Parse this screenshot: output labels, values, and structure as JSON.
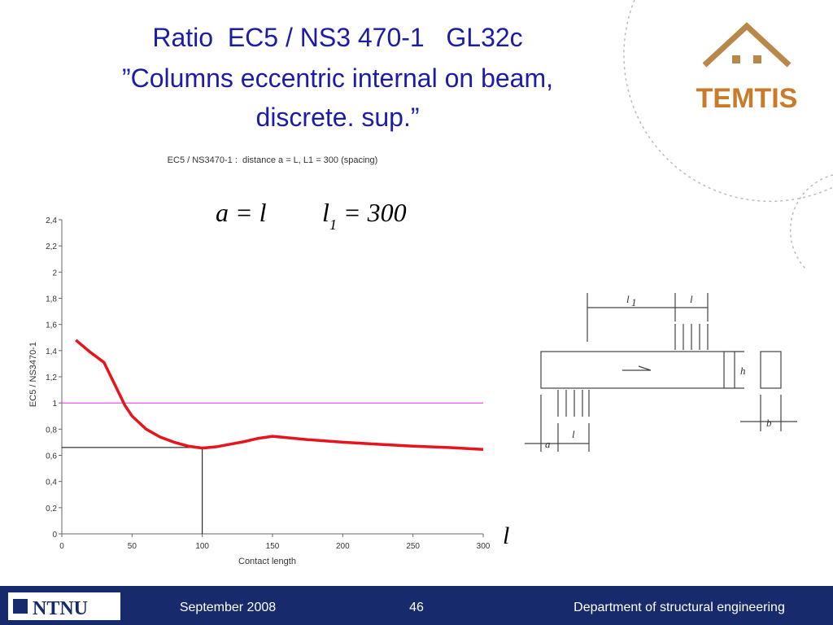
{
  "slide": {
    "title_lines": [
      "Ratio  EC5 / NS3 470-1   GL32c",
      "”Columns eccentric internal on beam,",
      "discrete. sup.”"
    ],
    "logo": "TEMTIS",
    "formula": {
      "left": "a = l",
      "right_var": "l",
      "right_sub": "1",
      "right_rest": "= 300"
    },
    "axis_symbol": "l",
    "diagram_labels": {
      "l1_var": "l",
      "l1_sub": "1",
      "l": "l",
      "h": "h",
      "b": "b",
      "a": "a",
      "l_bottom": "l"
    },
    "footer": {
      "left_logo": "NTNU",
      "date": "September 2008",
      "page": "46",
      "department": "Department of structural engineering"
    }
  },
  "chart_data": {
    "type": "line",
    "title": "EC5 / NS3470-1 :  distance a = L, L1 = 300 (spacing)",
    "x_label": "Contact length",
    "y_label": "EC5 / NS3470-1",
    "x": [
      10,
      20,
      30,
      35,
      40,
      45,
      50,
      60,
      70,
      80,
      90,
      100,
      110,
      120,
      130,
      140,
      150,
      160,
      175,
      200,
      225,
      250,
      275,
      300
    ],
    "series": [
      {
        "color": "#e8141c",
        "values": [
          1.48,
          1.39,
          1.31,
          1.2,
          1.09,
          0.98,
          0.9,
          0.8,
          0.74,
          0.7,
          0.67,
          0.655,
          0.665,
          0.685,
          0.705,
          0.73,
          0.745,
          0.735,
          0.72,
          0.7,
          0.685,
          0.67,
          0.66,
          0.645
        ]
      }
    ],
    "reference_lines": [
      {
        "y": 1,
        "color": "#e040e0"
      }
    ],
    "guide": {
      "x": 100,
      "y": 0.66,
      "color": "#000000"
    },
    "xlim": [
      0,
      300
    ],
    "xticks": [
      0,
      50,
      100,
      150,
      200,
      250,
      300
    ],
    "ylim": [
      0,
      2.4
    ],
    "yticks": [
      0,
      {
        "value": 0.2,
        "label": "0,2"
      },
      {
        "value": 0.4,
        "label": "0,4"
      },
      {
        "value": 0.6,
        "label": "0,6"
      },
      {
        "value": 0.8,
        "label": "0,8"
      },
      1,
      {
        "value": 1.2,
        "label": "1,2"
      },
      {
        "value": 1.4,
        "label": "1,4"
      },
      {
        "value": 1.6,
        "label": "1,6"
      },
      {
        "value": 1.8,
        "label": "1,8"
      },
      2,
      {
        "value": 2.2,
        "label": "2,2"
      },
      {
        "value": 2.4,
        "label": "2,4"
      }
    ]
  }
}
